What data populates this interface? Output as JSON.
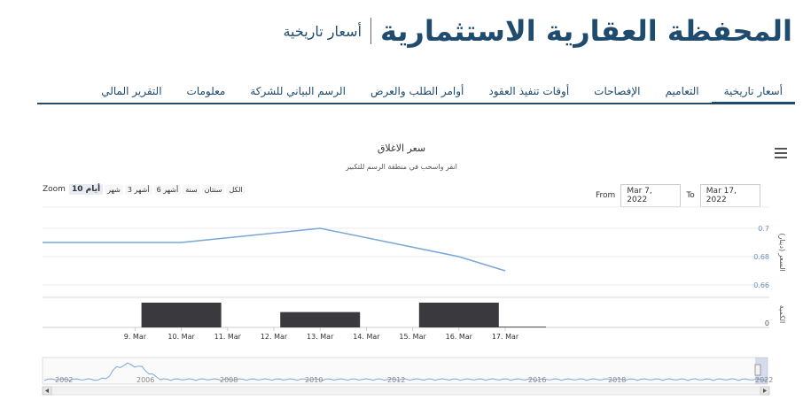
{
  "header": {
    "title": "المحفظة العقارية الاستثمارية",
    "subtitle": "أسعار تاريخية"
  },
  "tabs": [
    {
      "label": "أسعار تاريخية",
      "active": true
    },
    {
      "label": "التعاميم",
      "active": false
    },
    {
      "label": "الإفصاحات",
      "active": false
    },
    {
      "label": "أوقات تنفيذ العقود",
      "active": false
    },
    {
      "label": "أوامر الطلب والعرض",
      "active": false
    },
    {
      "label": "الرسم البياني للشركة",
      "active": false
    },
    {
      "label": "معلومات",
      "active": false
    },
    {
      "label": "التقرير المالي",
      "active": false
    }
  ],
  "chart": {
    "title": "سعر الاغلاق",
    "subtitle": "انقر واسحب في منطقة الرسم للتكبير",
    "menu_icon": "hamburger-icon",
    "zoom_label": "Zoom",
    "zoom_buttons": [
      {
        "label": "10 أيام",
        "selected": true
      },
      {
        "label": "شهر",
        "selected": false
      },
      {
        "label": "3 أشهر",
        "selected": false
      },
      {
        "label": "6 أشهر",
        "selected": false
      },
      {
        "label": "سنة",
        "selected": false
      },
      {
        "label": "سنتان",
        "selected": false
      },
      {
        "label": "الكل",
        "selected": false
      }
    ],
    "from_label": "From",
    "from_value": "Mar 7, 2022",
    "to_label": "To",
    "to_value": "Mar 17, 2022",
    "colors": {
      "line": "#7aa6d8",
      "bar": "#3a3a3e",
      "navigator": "#7aa6d8",
      "axis_text": "#6b8fc4"
    }
  },
  "chart_data": {
    "type": "line",
    "title": "سعر الاغلاق",
    "x_ticks": [
      "9. Mar",
      "10. Mar",
      "11. Mar",
      "12. Mar",
      "13. Mar",
      "14. Mar",
      "15. Mar",
      "16. Mar",
      "17. Mar"
    ],
    "price": {
      "ylabel": "السعر (دينار)",
      "ylim": [
        0.655,
        0.705
      ],
      "y_ticks": [
        "0.7",
        "0.68",
        "0.66"
      ],
      "points": [
        {
          "x": "7. Mar",
          "y": 0.69
        },
        {
          "x": "10. Mar",
          "y": 0.69
        },
        {
          "x": "13. Mar",
          "y": 0.7
        },
        {
          "x": "16. Mar",
          "y": 0.68
        },
        {
          "x": "17. Mar",
          "y": 0.67
        }
      ]
    },
    "volume": {
      "ylabel": "الكمية",
      "y_ticks": [
        "0"
      ],
      "bars": [
        {
          "x": "10. Mar",
          "value": 1.0
        },
        {
          "x": "13. Mar",
          "value": 0.62
        },
        {
          "x": "16. Mar",
          "value": 1.0
        },
        {
          "x": "17. Mar",
          "value": 0.03
        }
      ]
    },
    "navigator": {
      "years": [
        "2002",
        "2006",
        "2008",
        "2010",
        "2012",
        "2016",
        "2018",
        "2022"
      ]
    }
  }
}
